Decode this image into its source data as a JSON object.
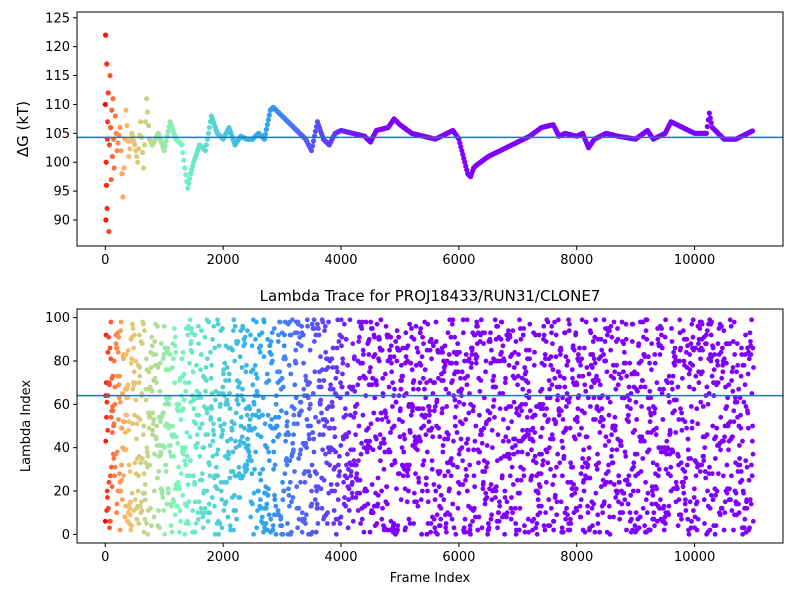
{
  "chart_data": [
    {
      "type": "scatter",
      "title": "",
      "xlabel": "",
      "ylabel": "ΔG (kT)",
      "xlim": [
        -480,
        11500
      ],
      "ylim": [
        85.5,
        126
      ],
      "xticks": [
        0,
        2000,
        4000,
        6000,
        8000,
        10000
      ],
      "xtick_labels": [
        "0",
        "2000",
        "4000",
        "6000",
        "8000",
        "10000"
      ],
      "yticks": [
        90,
        95,
        100,
        105,
        110,
        115,
        120,
        125
      ],
      "ytick_labels": [
        "90",
        "95",
        "100",
        "105",
        "110",
        "115",
        "120",
        "125"
      ],
      "grid": false,
      "colormap": "rainbow (early frames red, late frames violet)",
      "hline": {
        "y": 104.3,
        "color": "#1f77b4"
      },
      "series": [
        {
          "x": [
            0,
            5,
            10,
            15,
            20,
            25,
            30,
            35,
            40,
            50,
            60,
            70,
            80,
            90,
            100,
            110,
            120,
            130,
            140,
            150,
            170,
            200,
            250,
            300,
            350,
            400,
            450,
            500,
            550,
            600,
            650,
            700,
            750,
            800,
            900,
            1000,
            1100,
            1200,
            1300,
            1350,
            1400,
            1450,
            1500,
            1600,
            1700,
            1800,
            1900,
            2000,
            2100,
            2200,
            2300,
            2400,
            2500,
            2600,
            2700,
            2800,
            2850,
            3000,
            3200,
            3400,
            3500,
            3600,
            3700,
            3800,
            3900,
            4000,
            4200,
            4400,
            4500,
            4600,
            4800,
            4900,
            5000,
            5200,
            5400,
            5600,
            5800,
            5900,
            6000,
            6100,
            6150,
            6200,
            6250,
            6300,
            6500,
            6700,
            6900,
            7000,
            7200,
            7400,
            7600,
            7700,
            7800,
            8000,
            8100,
            8200,
            8300,
            8500,
            8700,
            9000,
            9200,
            9300,
            9500,
            9600,
            9800,
            10000,
            10200,
            10250,
            10300,
            10400,
            10500,
            10700,
            10900,
            11000
          ],
          "y": [
            110,
            122,
            90,
            100,
            96,
            117,
            92,
            104,
            107,
            112,
            88,
            103,
            115,
            106,
            97,
            109,
            101,
            111,
            104,
            99,
            108,
            102,
            106,
            94,
            109,
            101,
            105,
            103,
            100,
            107,
            99,
            111,
            104,
            103,
            105,
            102,
            107,
            104,
            103,
            99,
            95.5,
            98,
            100,
            103,
            102,
            108,
            105,
            104,
            106,
            103,
            104.5,
            104,
            104,
            105,
            104,
            109,
            109.5,
            108,
            106,
            104,
            102,
            107,
            104,
            103,
            105,
            105.5,
            105,
            104.5,
            103.5,
            105.5,
            106,
            107.5,
            106.5,
            105,
            104.5,
            104,
            105,
            105.5,
            104,
            100,
            98,
            97.5,
            99,
            99.5,
            101,
            102,
            103,
            103.5,
            104.5,
            106,
            106.5,
            104.5,
            105,
            104.5,
            105,
            102.5,
            104,
            105,
            104.5,
            104,
            105.5,
            104,
            105,
            107,
            106,
            105,
            105,
            108.5,
            106,
            105,
            104,
            104,
            105,
            105.5
          ]
        }
      ]
    },
    {
      "type": "scatter",
      "title": "Lambda Trace for PROJ18433/RUN31/CLONE7",
      "xlabel": "Frame Index",
      "ylabel": "Lambda Index",
      "xlim": [
        -480,
        11500
      ],
      "ylim": [
        -4,
        104
      ],
      "xticks": [
        0,
        2000,
        4000,
        6000,
        8000,
        10000
      ],
      "xtick_labels": [
        "0",
        "2000",
        "4000",
        "6000",
        "8000",
        "10000"
      ],
      "yticks": [
        0,
        20,
        40,
        60,
        80,
        100
      ],
      "ytick_labels": [
        "0",
        "20",
        "40",
        "60",
        "80",
        "100"
      ],
      "grid": false,
      "colormap": "rainbow (early frames red, late frames violet)",
      "hline": {
        "y": 64,
        "color": "#1f77b4"
      },
      "series": [
        {
          "frame_range": [
            0,
            11000
          ],
          "value_range": [
            0,
            99
          ],
          "description_points": "dense scatter of lambda indices spread over 0–99 for all frames"
        }
      ]
    }
  ]
}
